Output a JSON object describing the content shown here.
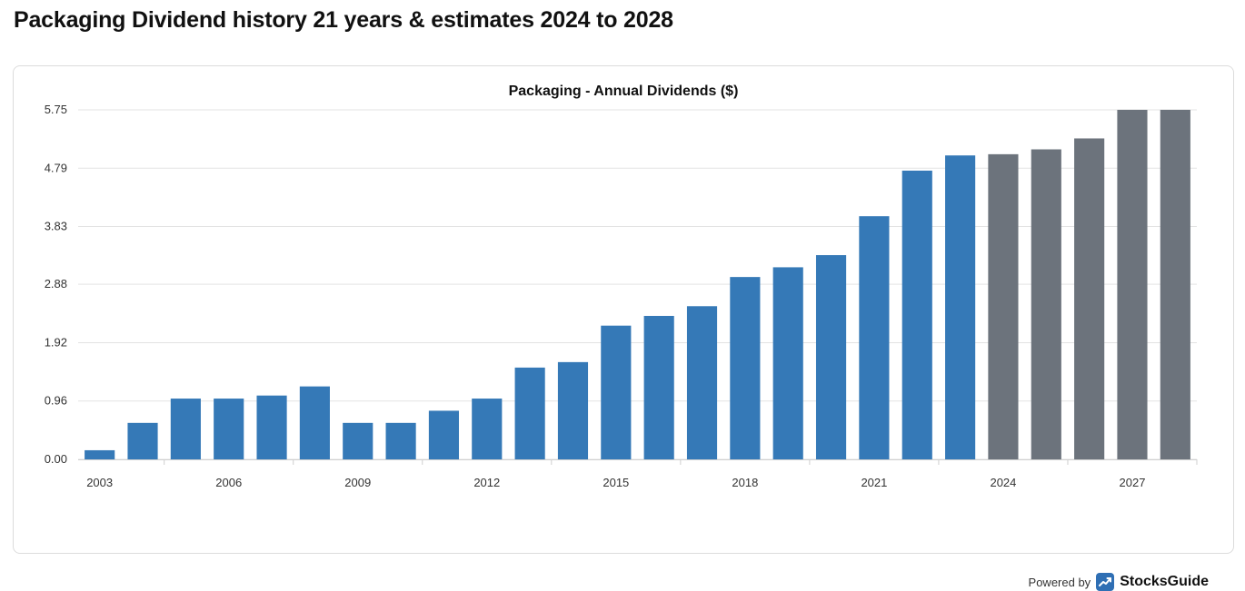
{
  "page_title": "Packaging Dividend history 21 years & estimates 2024 to 2028",
  "footer": {
    "powered_by": "Powered by",
    "brand": "StocksGuide",
    "brand_icon": "trend-up-icon"
  },
  "colors": {
    "historical": "#3579b7",
    "estimate": "#6c737c",
    "grid": "#e3e3e3",
    "axis": "#cfcfcf"
  },
  "chart_data": {
    "type": "bar",
    "title": "Packaging - Annual Dividends ($)",
    "xlabel": "",
    "ylabel": "",
    "ylim": [
      0,
      5.75
    ],
    "y_ticks": [
      "0.00",
      "0.96",
      "1.92",
      "2.88",
      "3.83",
      "4.79",
      "5.75"
    ],
    "x_tick_labels": [
      "2003",
      "2006",
      "2009",
      "2012",
      "2015",
      "2018",
      "2021",
      "2024",
      "2027"
    ],
    "categories": [
      "2003",
      "2004",
      "2005",
      "2006",
      "2007",
      "2008",
      "2009",
      "2010",
      "2011",
      "2012",
      "2013",
      "2014",
      "2015",
      "2016",
      "2017",
      "2018",
      "2019",
      "2020",
      "2021",
      "2022",
      "2023",
      "2024",
      "2025",
      "2026",
      "2027",
      "2028"
    ],
    "values": [
      0.15,
      0.6,
      1.0,
      1.0,
      1.05,
      1.2,
      0.6,
      0.6,
      0.8,
      1.0,
      1.51,
      1.6,
      2.2,
      2.36,
      2.52,
      3.0,
      3.16,
      3.36,
      4.0,
      4.75,
      5.0,
      5.02,
      5.1,
      5.28,
      5.75,
      5.75
    ],
    "estimate_from": "2024",
    "grid": true,
    "legend": "none"
  }
}
